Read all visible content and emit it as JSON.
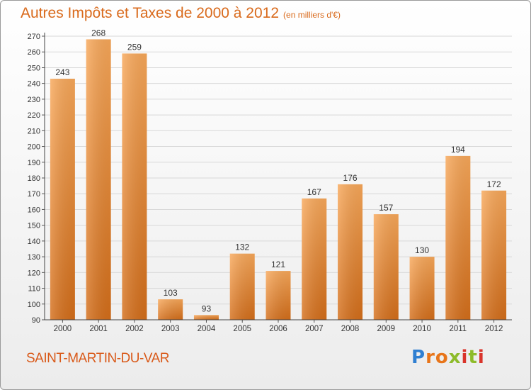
{
  "header": {
    "title": "Autres Impôts et Taxes de 2000 à 2012",
    "unit": "(en milliers d'€)"
  },
  "footer": {
    "location": "SAINT-MARTIN-DU-VAR",
    "logo_letters": [
      "P",
      "r",
      "o",
      "x",
      "i",
      "t",
      "i"
    ],
    "logo_colors": [
      "#2f7fd1",
      "#e8751a",
      "#e8751a",
      "#8dbb2a",
      "#d9342b",
      "#8dbb2a",
      "#d9342b"
    ]
  },
  "colors": {
    "bar_top": "#f8a85a",
    "bar_bottom": "#d46e1a",
    "grid": "#d8d8d8",
    "title": "#d96a1c"
  },
  "chart_data": {
    "type": "bar",
    "categories": [
      "2000",
      "2001",
      "2002",
      "2003",
      "2004",
      "2005",
      "2006",
      "2007",
      "2008",
      "2009",
      "2010",
      "2011",
      "2012"
    ],
    "values": [
      243,
      268,
      259,
      103,
      93,
      132,
      121,
      167,
      176,
      157,
      130,
      194,
      172
    ],
    "ylim": [
      90,
      270
    ],
    "yticks": [
      90,
      100,
      110,
      120,
      130,
      140,
      150,
      160,
      170,
      180,
      190,
      200,
      210,
      220,
      230,
      240,
      250,
      260,
      270
    ],
    "grid": true
  }
}
